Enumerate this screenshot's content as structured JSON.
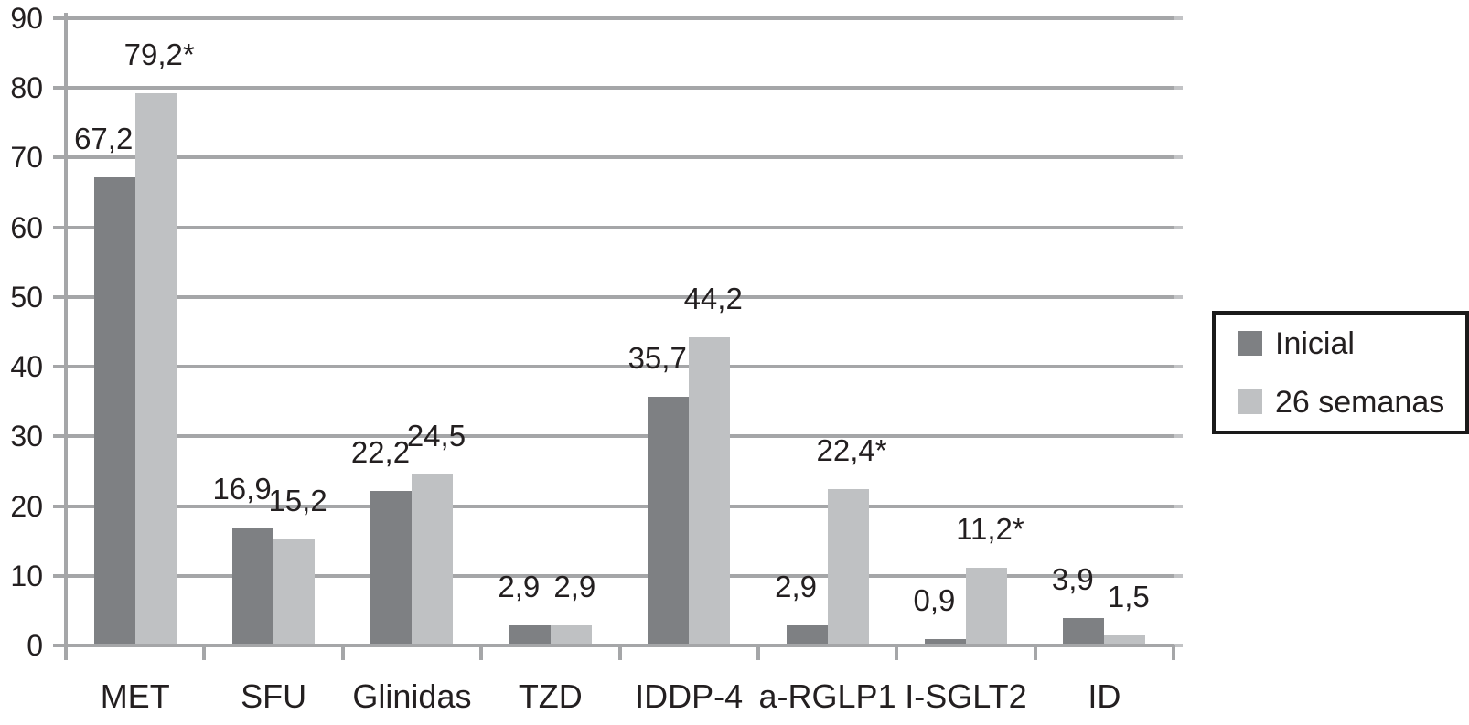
{
  "chart_data": {
    "type": "bar",
    "title": "",
    "xlabel": "",
    "ylabel": "",
    "categories": [
      "MET",
      "SFU",
      "Glinidas",
      "TZD",
      "IDDP-4",
      "a-RGLP1",
      "I-SGLT2",
      "ID"
    ],
    "series": [
      {
        "name": "Inicial",
        "color": "#7e8083",
        "values": [
          67.2,
          16.9,
          22.2,
          2.9,
          35.7,
          2.9,
          0.9,
          3.9
        ],
        "labels": [
          "67,2",
          "16,9",
          "22,2",
          "2,9",
          "35,7",
          "2,9",
          "0,9",
          "3,9"
        ]
      },
      {
        "name": "26 semanas",
        "color": "#bfc1c3",
        "values": [
          79.2,
          15.2,
          24.5,
          2.9,
          44.2,
          22.4,
          11.2,
          1.5
        ],
        "labels": [
          "79,2*",
          "15,2",
          "24,5",
          "2,9",
          "44,2",
          "22,4*",
          "11,2*",
          "1,5"
        ]
      }
    ],
    "ylim": [
      0,
      90
    ],
    "yticks": [
      0,
      10,
      20,
      30,
      40,
      50,
      60,
      70,
      80,
      90
    ],
    "grid": true,
    "legend_position": "right"
  },
  "colors": {
    "bar_dark": "#7e8083",
    "bar_light": "#bfc1c3",
    "gridline": "#a5a6a8",
    "right_tick": "#c2c3c5",
    "text": "#231f20",
    "legend_border": "#1a1a1a",
    "background": "#ffffff"
  }
}
